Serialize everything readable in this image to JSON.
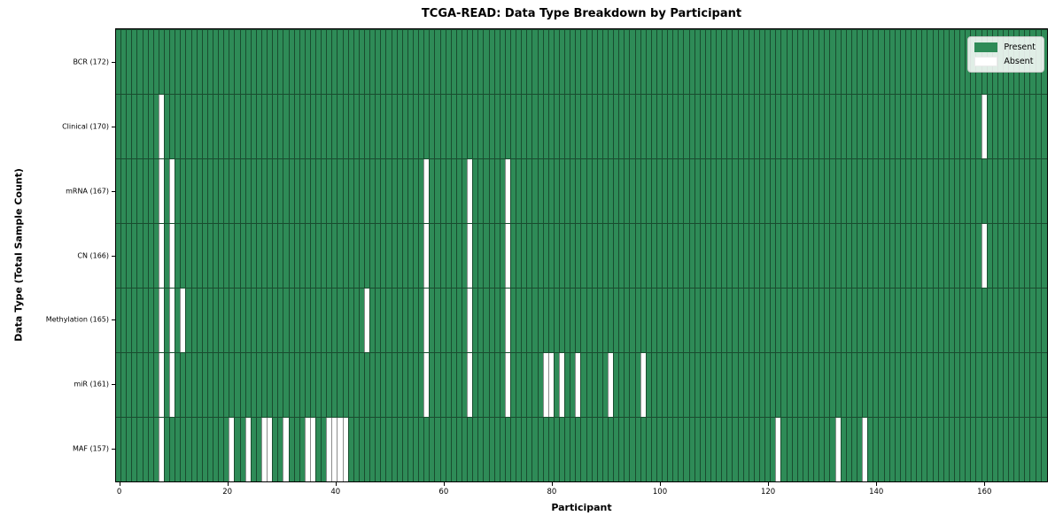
{
  "title": "TCGA-READ: Data Type Breakdown by Participant",
  "xlabel": "Participant",
  "ylabel": "Data Type (Total Sample Count)",
  "legend": {
    "present": "Present",
    "absent": "Absent"
  },
  "colors": {
    "present": "#2e8b57",
    "absent": "#ffffff",
    "grid": "rgba(0,0,0,0.45)"
  },
  "chart_data": {
    "type": "heatmap",
    "n_participants": 172,
    "x_ticks": [
      0,
      20,
      40,
      60,
      80,
      100,
      120,
      140,
      160
    ],
    "legend_entries": [
      "Present",
      "Absent"
    ],
    "rows": [
      {
        "label": "BCR (172)",
        "count": 172,
        "absent": []
      },
      {
        "label": "Clinical (170)",
        "count": 170,
        "absent": [
          8,
          160
        ]
      },
      {
        "label": "mRNA (167)",
        "count": 167,
        "absent": [
          8,
          10,
          57,
          65,
          72
        ]
      },
      {
        "label": "CN (166)",
        "count": 166,
        "absent": [
          8,
          10,
          57,
          65,
          72,
          160
        ]
      },
      {
        "label": "Methylation (165)",
        "count": 165,
        "absent": [
          8,
          10,
          12,
          46,
          57,
          65,
          72
        ]
      },
      {
        "label": "miR (161)",
        "count": 161,
        "absent": [
          8,
          10,
          57,
          65,
          72,
          79,
          80,
          82,
          85,
          91,
          97
        ]
      },
      {
        "label": "MAF (157)",
        "count": 157,
        "absent": [
          8,
          21,
          24,
          27,
          28,
          31,
          35,
          36,
          39,
          40,
          41,
          42,
          122,
          133,
          138
        ]
      }
    ]
  }
}
